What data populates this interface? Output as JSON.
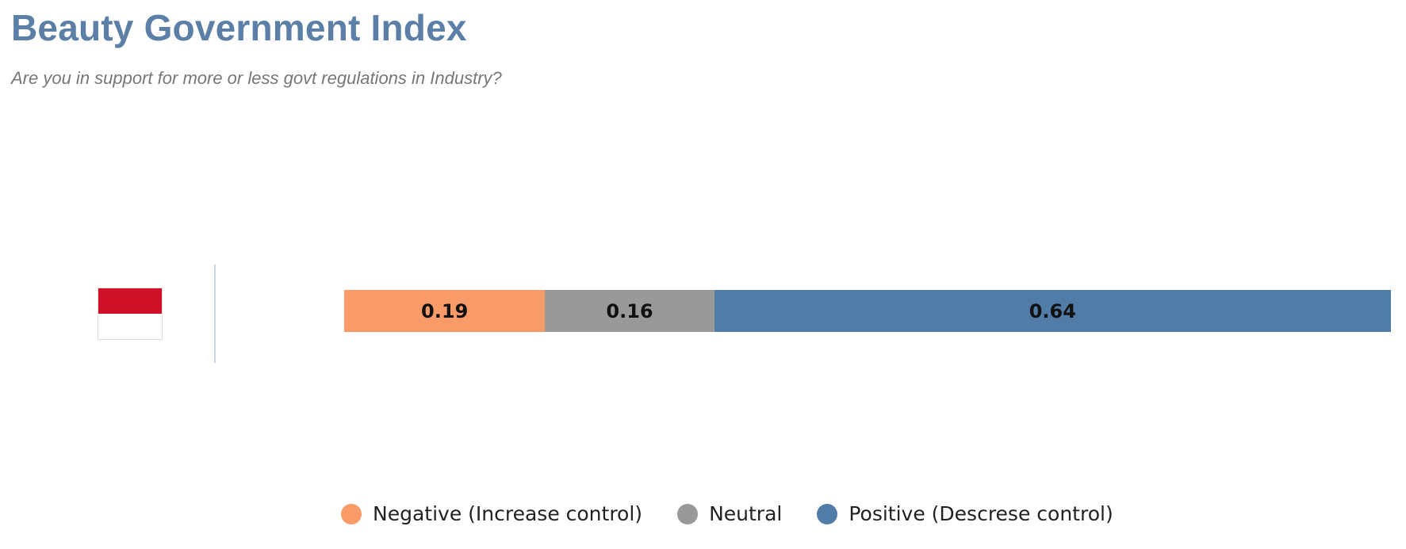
{
  "header": {
    "title": "Beauty Government Index",
    "subtitle": "Are you in support for more or less govt regulations in Industry?"
  },
  "row": {
    "flag_icon": "indonesia-flag-icon",
    "flag_colors": [
      "#ce1126",
      "#ffffff"
    ]
  },
  "chart_data": {
    "type": "bar",
    "orientation": "horizontal",
    "stacked": true,
    "title": "Beauty Government Index",
    "subtitle": "Are you in support for more or less govt regulations in Industry?",
    "categories": [
      ""
    ],
    "series": [
      {
        "name": "Negative (Increase control)",
        "values": [
          0.19
        ],
        "label": "0.19",
        "color": "#f99b69"
      },
      {
        "name": "Neutral",
        "values": [
          0.16
        ],
        "label": "0.16",
        "color": "#999999"
      },
      {
        "name": "Positive (Descrese control)",
        "values": [
          0.64
        ],
        "label": "0.64",
        "color": "#527ca8"
      }
    ],
    "xlim": [
      0,
      0.99
    ],
    "grid": false,
    "legend": "bottom"
  }
}
